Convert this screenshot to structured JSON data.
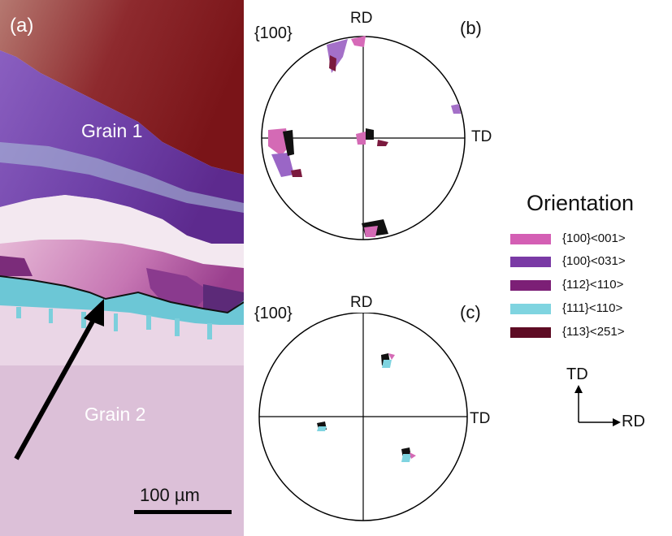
{
  "panel_a": {
    "tag": "(a)",
    "grain1_label": "Grain 1",
    "grain2_label": "Grain 2",
    "scalebar_label": "100 µm"
  },
  "panel_b": {
    "tag": "(b)",
    "family": "{100}",
    "top_axis": "RD",
    "right_axis": "TD"
  },
  "panel_c": {
    "tag": "(c)",
    "family": "{100}",
    "top_axis": "RD",
    "right_axis": "TD"
  },
  "legend": {
    "title": "Orientation",
    "items": [
      {
        "label": "{100}<001>",
        "color": "#d45fb4"
      },
      {
        "label": "{100}<031>",
        "color": "#7a3aa5"
      },
      {
        "label": "{112}<110>",
        "color": "#7c1f76"
      },
      {
        "label": "{111}<110>",
        "color": "#7fd4e0"
      },
      {
        "label": "{113}<251>",
        "color": "#5e0c24"
      }
    ]
  },
  "axes_key": {
    "up": "TD",
    "right": "RD"
  }
}
